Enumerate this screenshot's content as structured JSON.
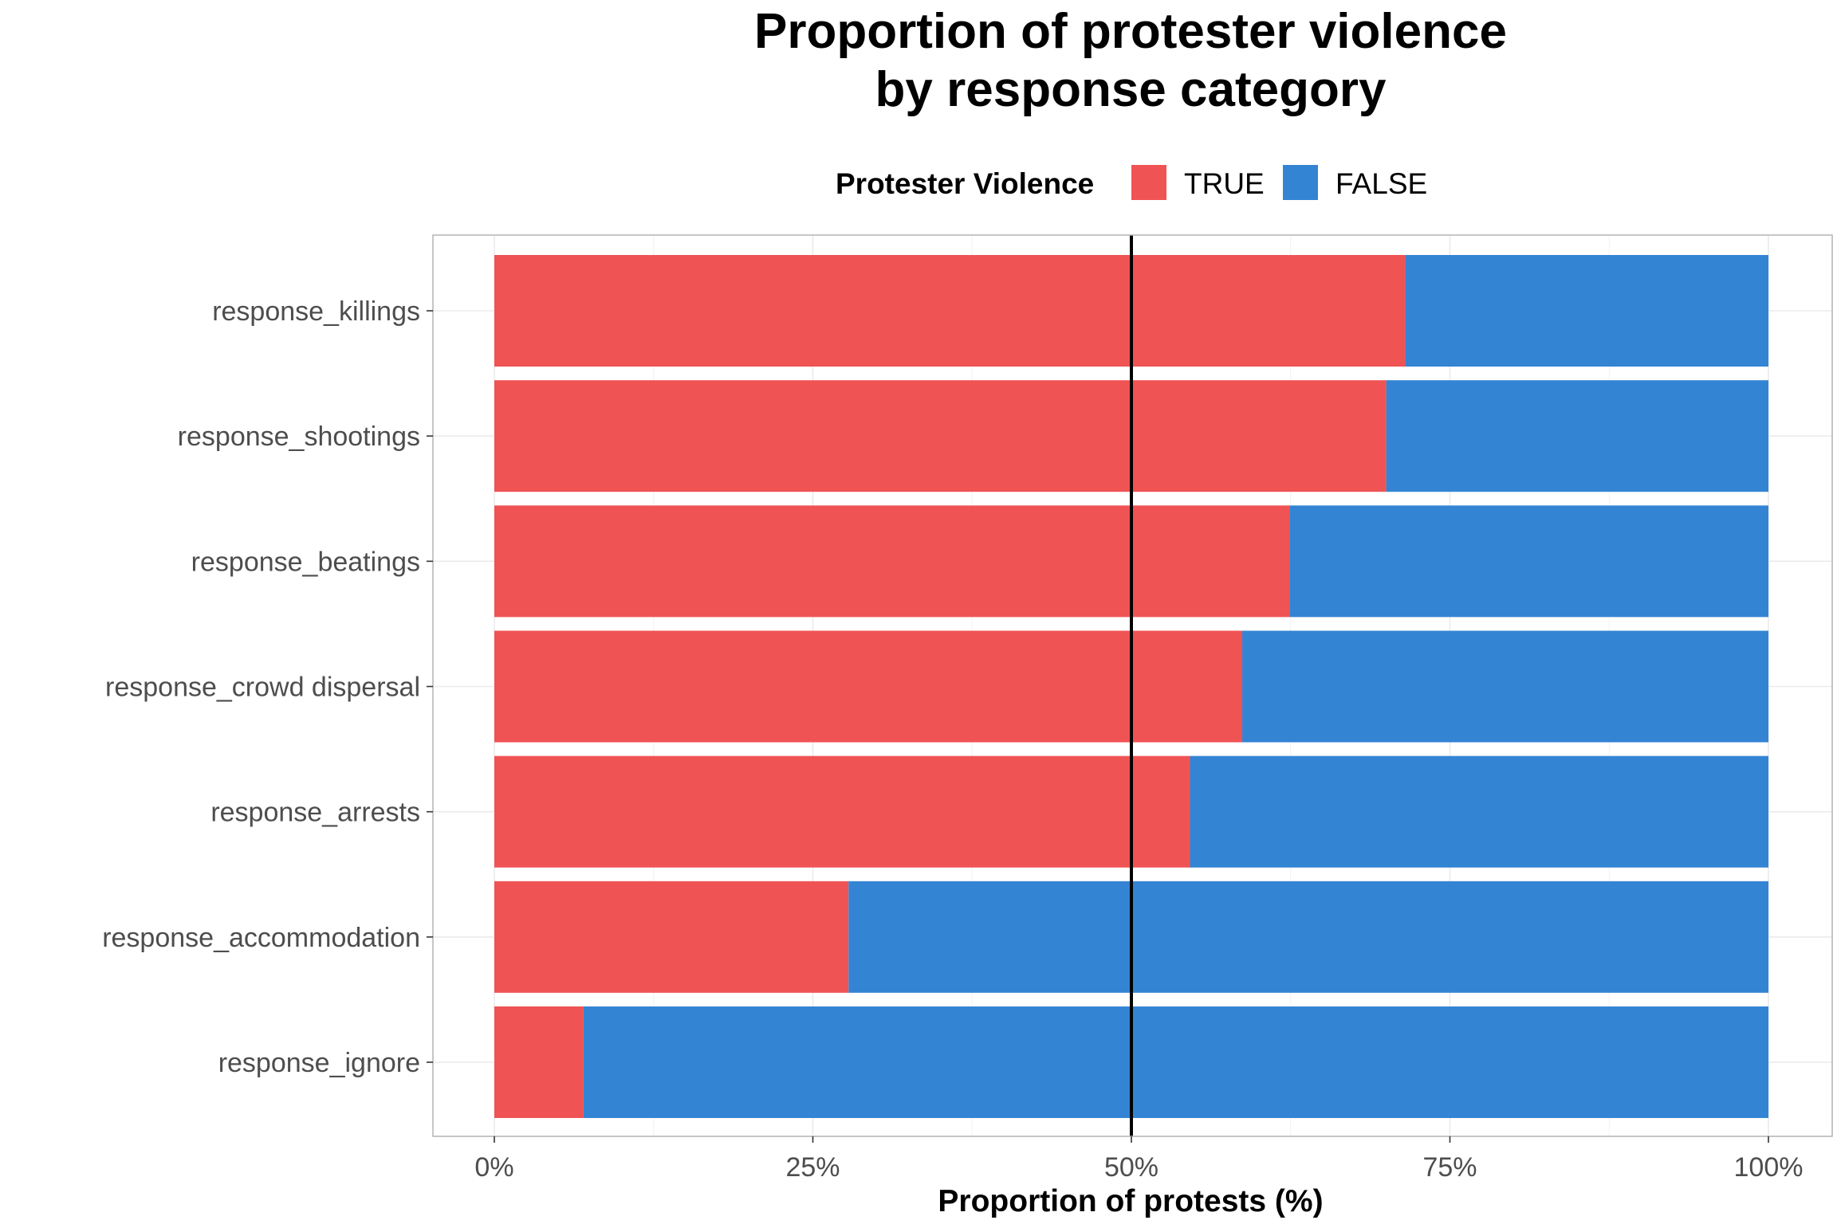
{
  "chart_data": {
    "type": "bar",
    "orientation": "horizontal",
    "stacked": true,
    "title_lines": [
      "Proportion of protester violence",
      "by response category"
    ],
    "xlabel": "Proportion of protests (%)",
    "ylabel": "",
    "xlim": [
      0,
      100
    ],
    "x_ticks": [
      0,
      25,
      50,
      75,
      100
    ],
    "x_tick_labels": [
      "0%",
      "25%",
      "50%",
      "75%",
      "100%"
    ],
    "grid": true,
    "reference_line": {
      "x": 50,
      "color": "#000000"
    },
    "legend": {
      "title": "Protester Violence",
      "position": "top"
    },
    "categories": [
      "response_killings",
      "response_shootings",
      "response_beatings",
      "response_crowd dispersal",
      "response_arrests",
      "response_accommodation",
      "response_ignore"
    ],
    "series": [
      {
        "name": "TRUE",
        "color": "#f05354",
        "values": [
          71.5,
          70.0,
          62.4,
          58.7,
          54.6,
          27.8,
          7.0
        ]
      },
      {
        "name": "FALSE",
        "color": "#3484d4",
        "values": [
          28.5,
          30.0,
          37.6,
          41.3,
          45.4,
          72.2,
          93.0
        ]
      }
    ]
  }
}
